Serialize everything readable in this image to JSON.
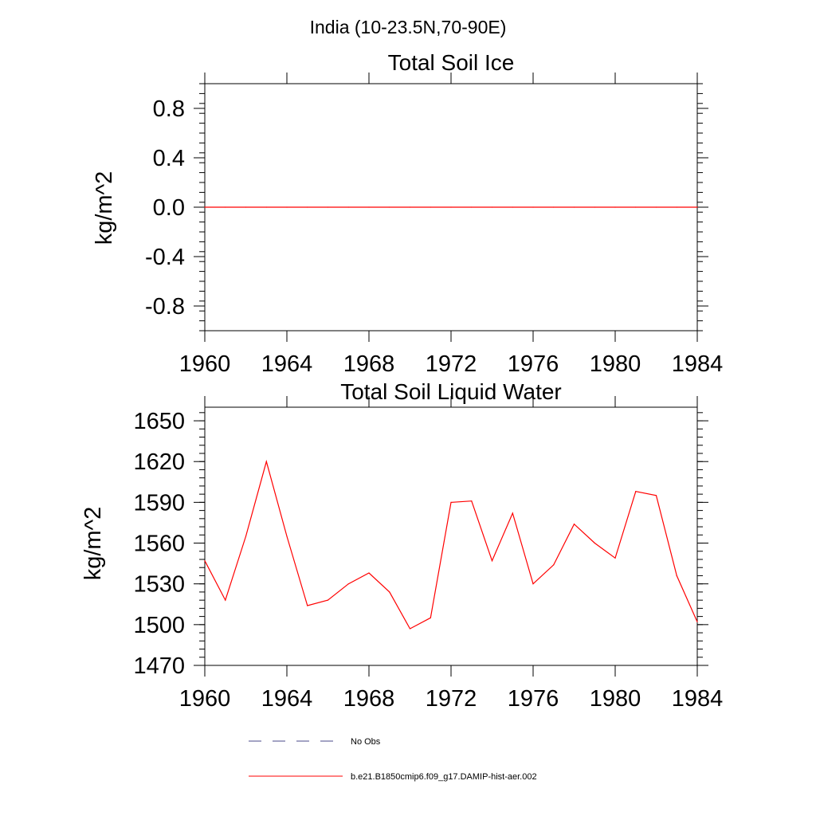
{
  "figure": {
    "region_title": "India (10-23.5N,70-90E)"
  },
  "legend": {
    "entries": [
      {
        "label": "No Obs",
        "color": "#4a4a8a",
        "dashed": true
      },
      {
        "label": "b.e21.B1850cmip6.f09_g17.DAMIP-hist-aer.002",
        "color": "#ff0000",
        "dashed": false
      }
    ]
  },
  "chart_data": [
    {
      "type": "line",
      "title": "Total Soil Ice",
      "xlabel": "",
      "ylabel": "kg/m^2",
      "xlim": [
        1960,
        1984
      ],
      "ylim": [
        -1,
        1
      ],
      "x_ticks": [
        1960,
        1964,
        1968,
        1972,
        1976,
        1980,
        1984
      ],
      "x_tick_labels": [
        "1960",
        "1964",
        "1968",
        "1972",
        "1976",
        "1980",
        "1984"
      ],
      "y_ticks": [
        0.8,
        0.4,
        0.0,
        -0.4,
        -0.8
      ],
      "y_tick_labels": [
        "0.8",
        "0.4",
        "0.0",
        "-0.4",
        "-0.8"
      ],
      "grid": false,
      "series": [
        {
          "name": "b.e21.B1850cmip6.f09_g17.DAMIP-hist-aer.002",
          "color": "#ff0000",
          "x": [
            1960,
            1961,
            1962,
            1963,
            1964,
            1965,
            1966,
            1967,
            1968,
            1969,
            1970,
            1971,
            1972,
            1973,
            1974,
            1975,
            1976,
            1977,
            1978,
            1979,
            1980,
            1981,
            1982,
            1983,
            1984
          ],
          "y": [
            0,
            0,
            0,
            0,
            0,
            0,
            0,
            0,
            0,
            0,
            0,
            0,
            0,
            0,
            0,
            0,
            0,
            0,
            0,
            0,
            0,
            0,
            0,
            0,
            0
          ]
        }
      ]
    },
    {
      "type": "line",
      "title": "Total Soil Liquid Water",
      "xlabel": "",
      "ylabel": "kg/m^2",
      "xlim": [
        1960,
        1984
      ],
      "ylim": [
        1470,
        1660
      ],
      "x_ticks": [
        1960,
        1964,
        1968,
        1972,
        1976,
        1980,
        1984
      ],
      "x_tick_labels": [
        "1960",
        "1964",
        "1968",
        "1972",
        "1976",
        "1980",
        "1984"
      ],
      "y_ticks": [
        1650,
        1620,
        1590,
        1560,
        1530,
        1500,
        1470
      ],
      "y_tick_labels": [
        "1650",
        "1620",
        "1590",
        "1560",
        "1530",
        "1500",
        "1470"
      ],
      "grid": false,
      "series": [
        {
          "name": "b.e21.B1850cmip6.f09_g17.DAMIP-hist-aer.002",
          "color": "#ff0000",
          "x": [
            1960,
            1961,
            1962,
            1963,
            1964,
            1965,
            1966,
            1967,
            1968,
            1969,
            1970,
            1971,
            1972,
            1973,
            1974,
            1975,
            1976,
            1977,
            1978,
            1979,
            1980,
            1981,
            1982,
            1983,
            1984
          ],
          "y": [
            1547,
            1518,
            1565,
            1620,
            1565,
            1514,
            1518,
            1530,
            1538,
            1524,
            1497,
            1505,
            1590,
            1591,
            1547,
            1582,
            1530,
            1544,
            1574,
            1560,
            1549,
            1598,
            1595,
            1536,
            1502
          ]
        }
      ]
    }
  ]
}
